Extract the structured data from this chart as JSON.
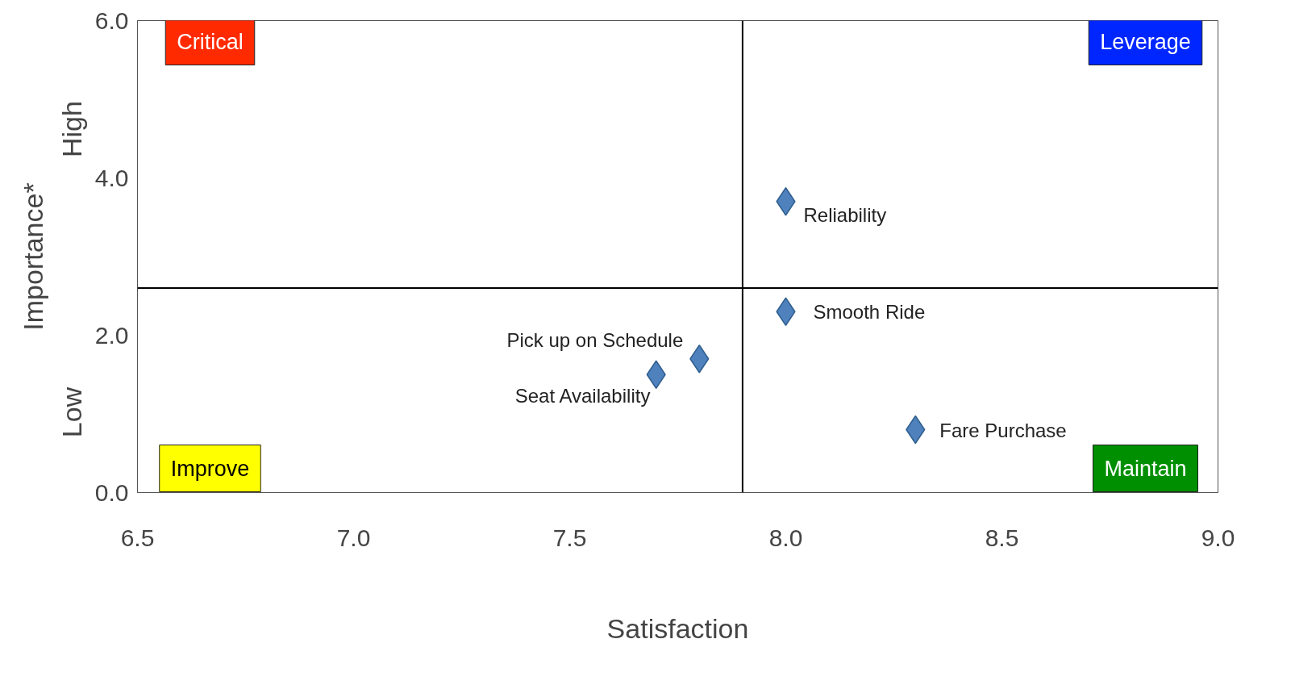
{
  "chart_data": {
    "type": "scatter",
    "xlabel": "Satisfaction",
    "ylabel": "Importance*",
    "xlim": [
      6.5,
      9.0
    ],
    "ylim": [
      0.0,
      6.0
    ],
    "xticks": [
      {
        "value": 6.5,
        "label": "6.5"
      },
      {
        "value": 7,
        "label": "7.0"
      },
      {
        "value": 7.5,
        "label": "7.5"
      },
      {
        "value": 8,
        "label": "8.0"
      },
      {
        "value": 8.5,
        "label": "8.5"
      },
      {
        "value": 9,
        "label": "9.0"
      }
    ],
    "yticks": [
      {
        "value": 0,
        "label": "0.0"
      },
      {
        "value": 2,
        "label": "2.0"
      },
      {
        "value": 4,
        "label": "4.0"
      },
      {
        "value": 6,
        "label": "6.0"
      }
    ],
    "marker": "diamond",
    "grid": false,
    "series": [
      {
        "name": "Reliability",
        "color": "#4f81bd",
        "x": [
          8.0
        ],
        "values": [
          3.7
        ]
      },
      {
        "name": "Smooth Ride",
        "color": "#4f81bd",
        "x": [
          8.0
        ],
        "values": [
          2.3
        ]
      },
      {
        "name": "Pick up on Schedule",
        "color": "#4f81bd",
        "x": [
          7.8
        ],
        "values": [
          1.7
        ]
      },
      {
        "name": "Seat Availability",
        "color": "#4f81bd",
        "x": [
          7.7
        ],
        "values": [
          1.5
        ]
      },
      {
        "name": "Fare Purchase",
        "color": "#4f81bd",
        "x": [
          8.3
        ],
        "values": [
          0.8
        ]
      }
    ],
    "ref_lines": [
      {
        "axis": "x",
        "value": 7.9,
        "color": "#000000"
      },
      {
        "axis": "y",
        "value": 2.6,
        "color": "#000000"
      }
    ],
    "annotations": [
      "Critical",
      "Leverage",
      "Improve",
      "Maintain",
      "High",
      "Low"
    ]
  }
}
